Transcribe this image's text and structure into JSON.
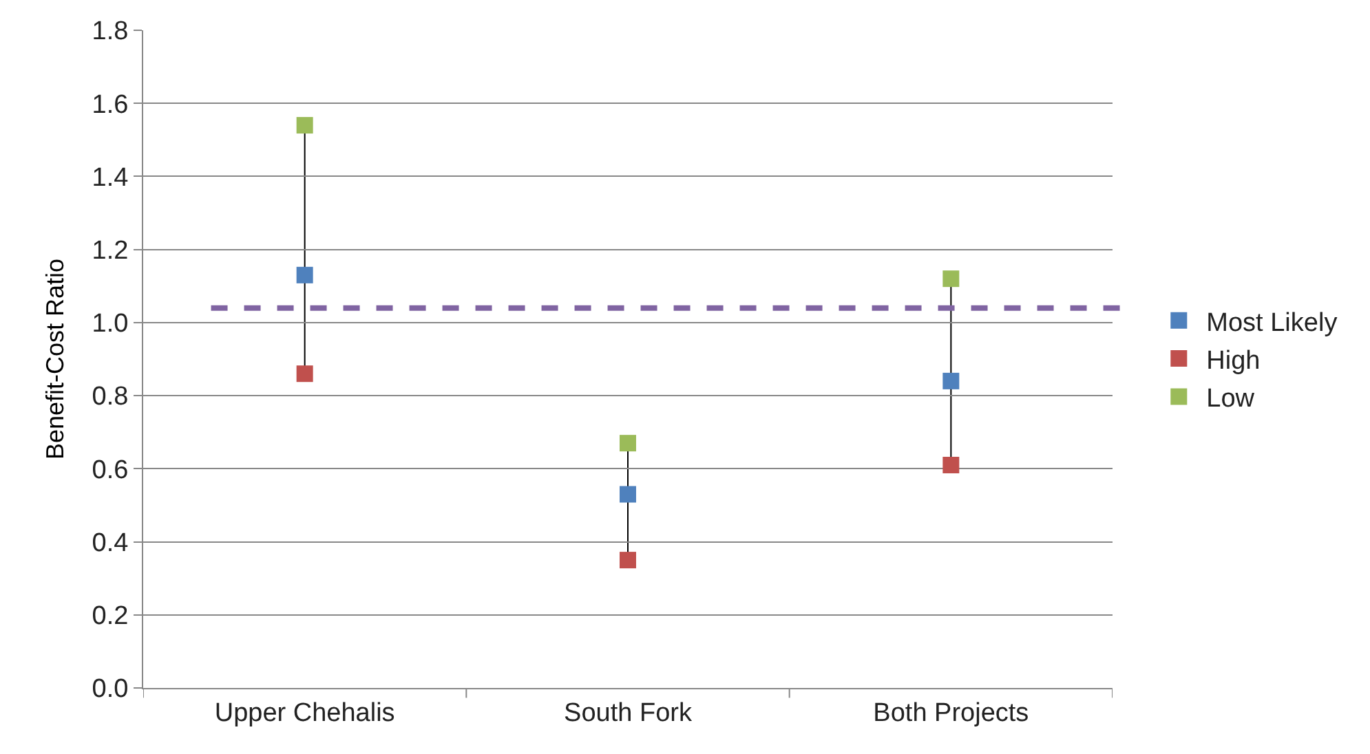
{
  "chart_data": {
    "type": "scatter",
    "ylabel": "Benefit-Cost Ratio",
    "categories": [
      "Upper Chehalis",
      "South Fork",
      "Both Projects"
    ],
    "series": [
      {
        "name": "Most Likely",
        "color": "#4f81bd",
        "values": [
          1.13,
          0.53,
          0.84
        ]
      },
      {
        "name": "High",
        "color": "#c0504d",
        "values": [
          0.86,
          0.35,
          0.61
        ]
      },
      {
        "name": "Low",
        "color": "#9bbb59",
        "values": [
          1.54,
          0.67,
          1.12
        ]
      }
    ],
    "ylim": [
      0,
      1.8
    ],
    "yticks": [
      "0.0",
      0.2,
      0.4,
      0.6,
      0.8,
      "1.0",
      1.2,
      1.4,
      1.6,
      1.8
    ],
    "ref_lines": [
      {
        "axis": "y",
        "value": 1.04,
        "color": "#8064a2",
        "line_style": "dashed"
      }
    ],
    "grid": "y",
    "legend": "right",
    "marker": "square"
  }
}
